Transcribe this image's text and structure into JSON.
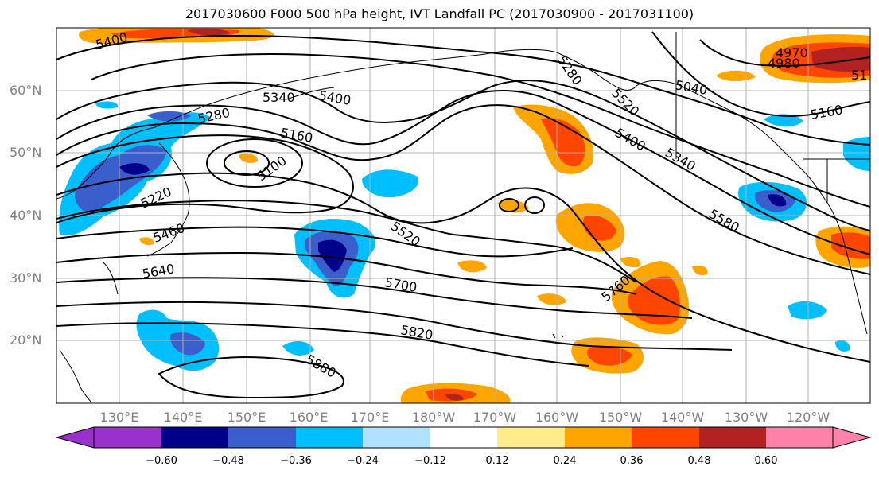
{
  "title": "2017030600 F000 500 hPa height, IVT Landfall PC (2017030900 - 2017031100)",
  "map": {
    "lat_labels": [
      "60°N",
      "50°N",
      "40°N",
      "30°N",
      "20°N"
    ],
    "lon_labels": [
      "130°E",
      "140°E",
      "150°E",
      "160°E",
      "170°E",
      "180°W",
      "170°W",
      "160°W",
      "150°W",
      "140°W",
      "130°W",
      "120°W"
    ],
    "contour_labels": [
      "5400",
      "5280",
      "5340",
      "5400",
      "5160",
      "5100",
      "5220",
      "5460",
      "5520",
      "5640",
      "5700",
      "5760",
      "5820",
      "5880",
      "5580",
      "5340",
      "5400",
      "5280",
      "5520",
      "5040",
      "4970",
      "4980",
      "5160",
      "51"
    ]
  },
  "colorbar": {
    "ticks": [
      "−0.60",
      "−0.48",
      "−0.36",
      "−0.24",
      "−0.12",
      "0.12",
      "0.24",
      "0.36",
      "0.48",
      "0.60"
    ],
    "colors": [
      "#9932cc",
      "#00008b",
      "#3a5fcd",
      "#00bfff",
      "#b0e2ff",
      "#ffffff",
      "#ffec8b",
      "#ffa500",
      "#ff4500",
      "#b22222",
      "#ff82ab"
    ]
  }
}
